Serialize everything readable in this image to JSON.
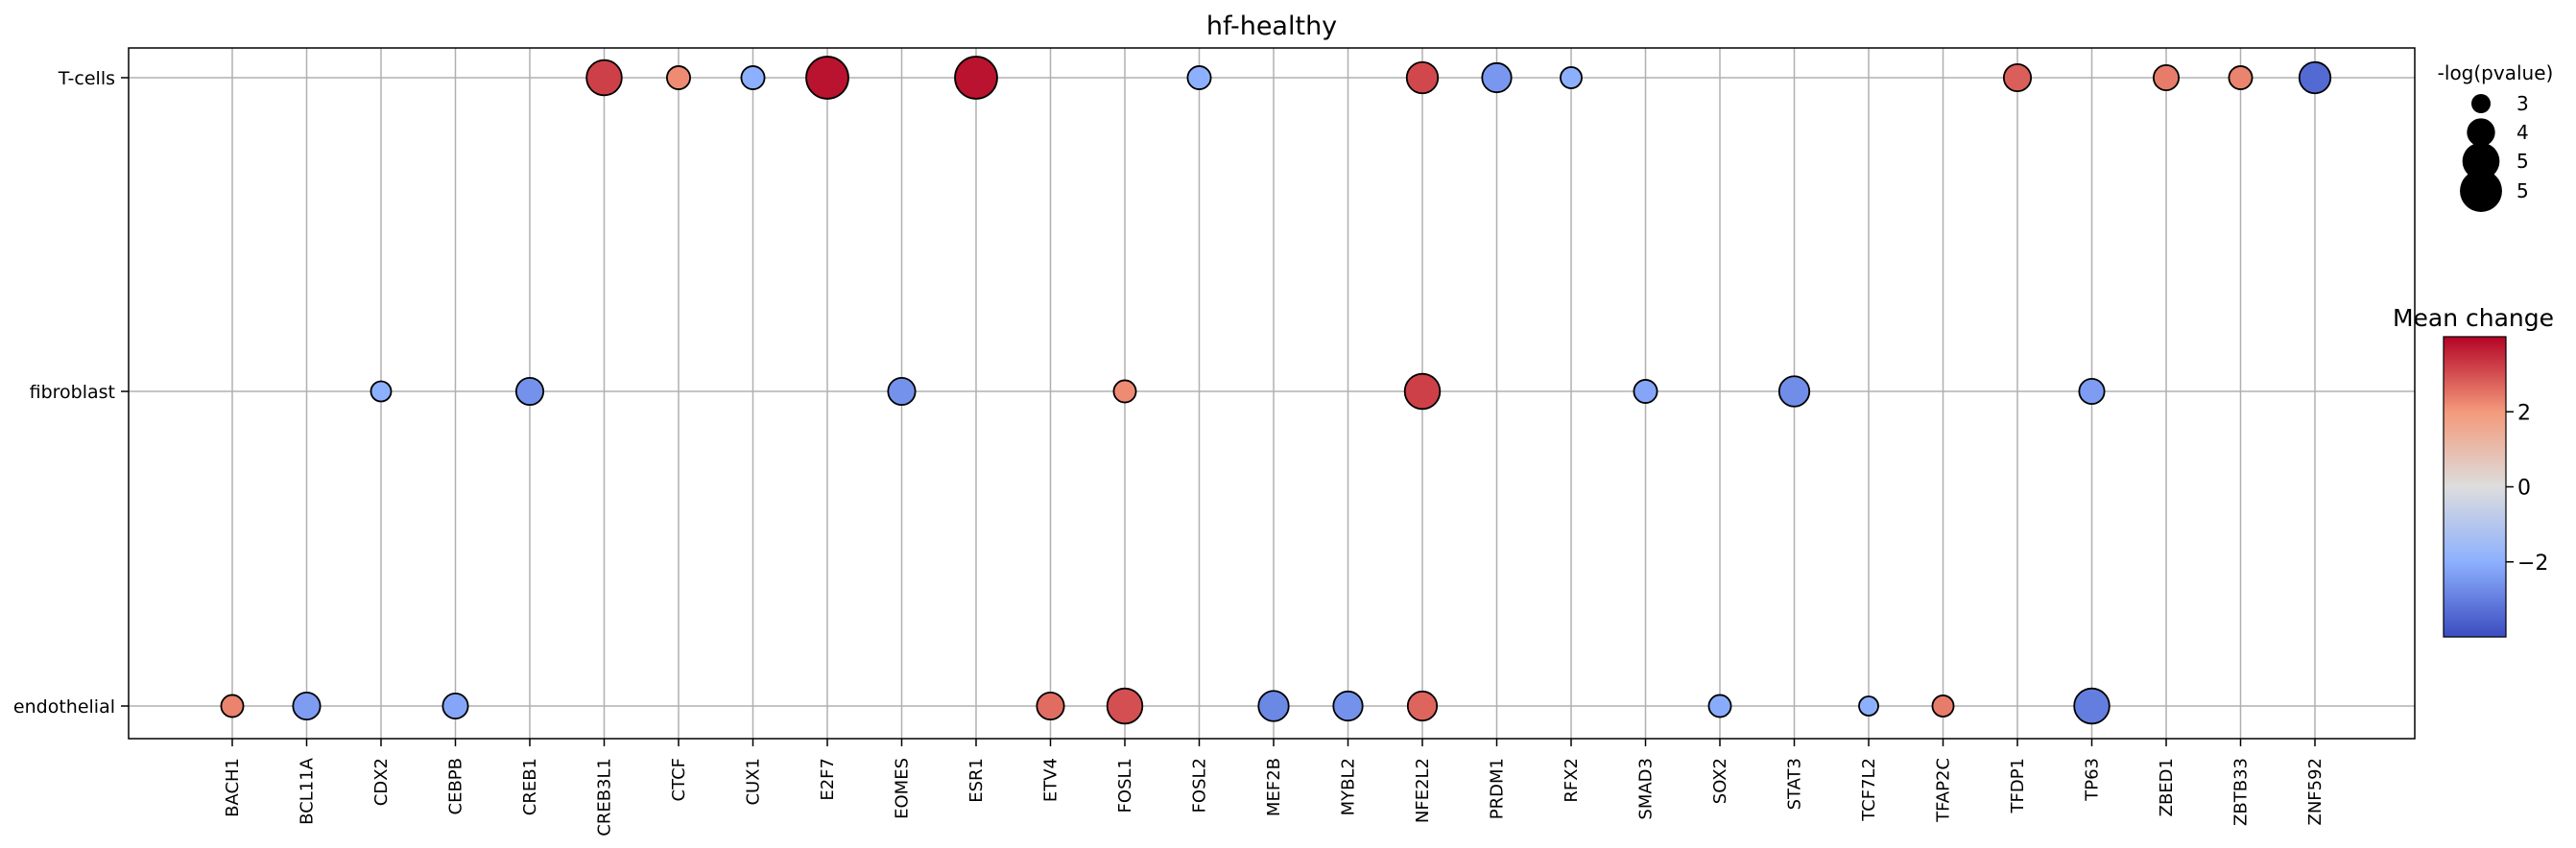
{
  "chart_data": {
    "type": "scatter",
    "title": "hf-healthy",
    "xlabel": "",
    "ylabel": "",
    "x_categories": [
      "BACH1",
      "BCL11A",
      "CDX2",
      "CEBPB",
      "CREB1",
      "CREB3L1",
      "CTCF",
      "CUX1",
      "E2F7",
      "EOMES",
      "ESR1",
      "ETV4",
      "FOSL1",
      "FOSL2",
      "MEF2B",
      "MYBL2",
      "NFE2L2",
      "PRDM1",
      "RFX2",
      "SMAD3",
      "SOX2",
      "STAT3",
      "TCF7L2",
      "TFAP2C",
      "TFDP1",
      "TP63",
      "ZBED1",
      "ZBTB33",
      "ZNF592"
    ],
    "y_categories": [
      "T-cells",
      "fibroblast",
      "endothelial"
    ],
    "grid": true,
    "color_scale": {
      "title": "Mean change",
      "colormap": "coolwarm",
      "min": -4,
      "max": 4,
      "ticks": [
        2,
        0,
        -2
      ],
      "tick_labels": [
        "2",
        "0",
        "−2"
      ]
    },
    "size_legend": {
      "title": "-log(pvalue)",
      "labels": [
        "3",
        "4",
        "5",
        "5"
      ],
      "values": [
        3.0,
        3.9,
        4.8,
        5.3
      ]
    },
    "points": [
      {
        "x": "CREB3L1",
        "y": "T-cells",
        "mean_change": 3.2,
        "neg_log_pvalue": 4.6
      },
      {
        "x": "CTCF",
        "y": "T-cells",
        "mean_change": 2.2,
        "neg_log_pvalue": 3.4
      },
      {
        "x": "CUX1",
        "y": "T-cells",
        "mean_change": -2.0,
        "neg_log_pvalue": 3.4
      },
      {
        "x": "E2F7",
        "y": "T-cells",
        "mean_change": 3.8,
        "neg_log_pvalue": 5.3
      },
      {
        "x": "ESR1",
        "y": "T-cells",
        "mean_change": 3.8,
        "neg_log_pvalue": 5.3
      },
      {
        "x": "FOSL2",
        "y": "T-cells",
        "mean_change": -2.0,
        "neg_log_pvalue": 3.4
      },
      {
        "x": "NFE2L2",
        "y": "T-cells",
        "mean_change": 3.1,
        "neg_log_pvalue": 4.2
      },
      {
        "x": "PRDM1",
        "y": "T-cells",
        "mean_change": -2.5,
        "neg_log_pvalue": 4.0
      },
      {
        "x": "RFX2",
        "y": "T-cells",
        "mean_change": -2.0,
        "neg_log_pvalue": 3.2
      },
      {
        "x": "TFDP1",
        "y": "T-cells",
        "mean_change": 2.8,
        "neg_log_pvalue": 3.8
      },
      {
        "x": "ZBED1",
        "y": "T-cells",
        "mean_change": 2.4,
        "neg_log_pvalue": 3.6
      },
      {
        "x": "ZBTB33",
        "y": "T-cells",
        "mean_change": 2.3,
        "neg_log_pvalue": 3.4
      },
      {
        "x": "ZNF592",
        "y": "T-cells",
        "mean_change": -3.4,
        "neg_log_pvalue": 4.2
      },
      {
        "x": "CDX2",
        "y": "fibroblast",
        "mean_change": -2.0,
        "neg_log_pvalue": 3.1
      },
      {
        "x": "CREB1",
        "y": "fibroblast",
        "mean_change": -2.6,
        "neg_log_pvalue": 3.8
      },
      {
        "x": "EOMES",
        "y": "fibroblast",
        "mean_change": -2.6,
        "neg_log_pvalue": 3.8
      },
      {
        "x": "FOSL1",
        "y": "fibroblast",
        "mean_change": 2.2,
        "neg_log_pvalue": 3.3
      },
      {
        "x": "NFE2L2",
        "y": "fibroblast",
        "mean_change": 3.2,
        "neg_log_pvalue": 4.6
      },
      {
        "x": "SMAD3",
        "y": "fibroblast",
        "mean_change": -2.2,
        "neg_log_pvalue": 3.4
      },
      {
        "x": "STAT3",
        "y": "fibroblast",
        "mean_change": -2.7,
        "neg_log_pvalue": 4.1
      },
      {
        "x": "TP63",
        "y": "fibroblast",
        "mean_change": -2.4,
        "neg_log_pvalue": 3.6
      },
      {
        "x": "BACH1",
        "y": "endothelial",
        "mean_change": 2.3,
        "neg_log_pvalue": 3.3
      },
      {
        "x": "BCL11A",
        "y": "endothelial",
        "mean_change": -2.4,
        "neg_log_pvalue": 3.8
      },
      {
        "x": "CEBPB",
        "y": "endothelial",
        "mean_change": -2.2,
        "neg_log_pvalue": 3.6
      },
      {
        "x": "ETV4",
        "y": "endothelial",
        "mean_change": 2.6,
        "neg_log_pvalue": 3.8
      },
      {
        "x": "FOSL1",
        "y": "endothelial",
        "mean_change": 3.0,
        "neg_log_pvalue": 4.6
      },
      {
        "x": "MEF2B",
        "y": "endothelial",
        "mean_change": -2.8,
        "neg_log_pvalue": 4.1
      },
      {
        "x": "MYBL2",
        "y": "endothelial",
        "mean_change": -2.6,
        "neg_log_pvalue": 4.0
      },
      {
        "x": "NFE2L2",
        "y": "endothelial",
        "mean_change": 2.7,
        "neg_log_pvalue": 4.0
      },
      {
        "x": "SOX2",
        "y": "endothelial",
        "mean_change": -2.1,
        "neg_log_pvalue": 3.3
      },
      {
        "x": "TCF7L2",
        "y": "endothelial",
        "mean_change": -2.0,
        "neg_log_pvalue": 3.0
      },
      {
        "x": "TFAP2C",
        "y": "endothelial",
        "mean_change": 2.4,
        "neg_log_pvalue": 3.2
      },
      {
        "x": "TP63",
        "y": "endothelial",
        "mean_change": -3.0,
        "neg_log_pvalue": 4.6
      }
    ]
  }
}
